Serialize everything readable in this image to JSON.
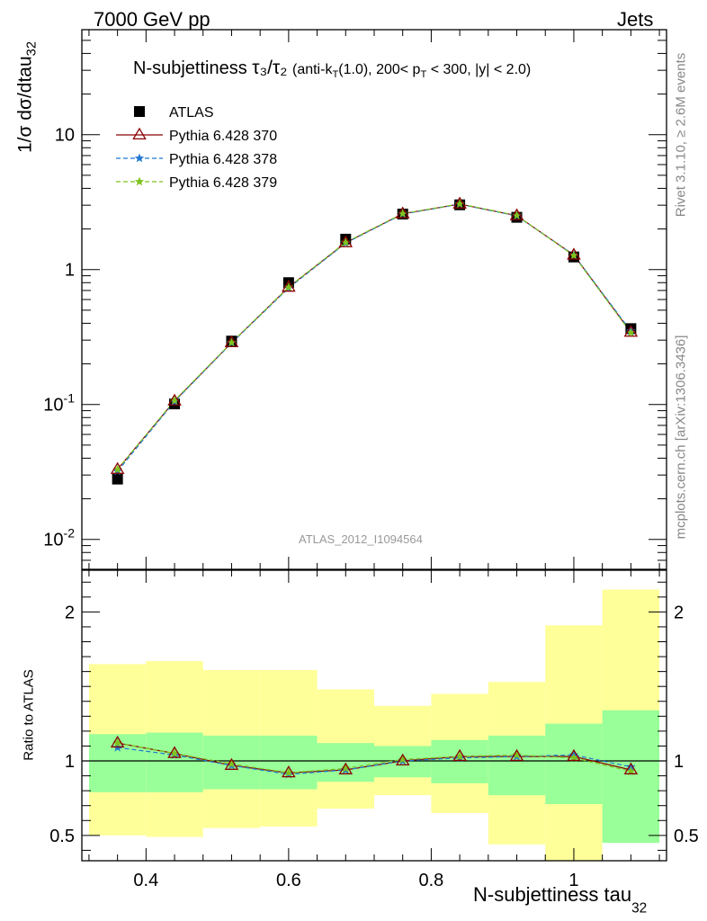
{
  "header": {
    "left": "7000 GeV pp",
    "right": "Jets"
  },
  "side_labels": {
    "rivet": "Rivet 3.1.10, ≥ 2.6M events",
    "mcplots": "mcplots.cern.ch [arXiv:1306.3436]"
  },
  "title": {
    "main": "N-subjettiness",
    "ratio_expr": "τ₃/τ₂",
    "detail": "(anti-k_T(1.0), 200< p_T < 300, |y| < 2.0)"
  },
  "watermark": "ATLAS_2012_I1094564",
  "colors": {
    "data": "#000000",
    "p370": "#8b0000",
    "p378": "#1e78d2",
    "p379": "#7fc21e",
    "band_outer": "#ffff99",
    "band_inner": "#99ff99"
  },
  "chart_data": [
    {
      "type": "scatter",
      "panel": "main",
      "ylabel": "1/σ dσ/dtau_32",
      "yscale": "log",
      "ylim": [
        0.006,
        60
      ],
      "xlim": [
        0.31,
        1.13
      ],
      "yticks": [
        {
          "value": 0.01,
          "label": "10^-2"
        },
        {
          "value": 0.1,
          "label": "10^-1"
        },
        {
          "value": 1,
          "label": "1"
        },
        {
          "value": 10,
          "label": "10"
        }
      ],
      "x": [
        0.36,
        0.44,
        0.52,
        0.6,
        0.68,
        0.76,
        0.84,
        0.92,
        1.0,
        1.08
      ],
      "series": [
        {
          "name": "ATLAS",
          "marker": "square",
          "values": [
            0.028,
            0.101,
            0.295,
            0.8,
            1.68,
            2.58,
            3.02,
            2.44,
            1.24,
            0.365
          ]
        },
        {
          "name": "Pythia 6.428 370",
          "marker": "triangle",
          "values": [
            0.033,
            0.106,
            0.287,
            0.74,
            1.58,
            2.59,
            3.06,
            2.51,
            1.28,
            0.343
          ]
        },
        {
          "name": "Pythia 6.428 378",
          "marker": "star",
          "values": [
            0.032,
            0.105,
            0.286,
            0.73,
            1.57,
            2.58,
            3.05,
            2.5,
            1.28,
            0.35
          ]
        },
        {
          "name": "Pythia 6.428 379",
          "marker": "star",
          "values": [
            0.033,
            0.107,
            0.288,
            0.74,
            1.59,
            2.6,
            3.07,
            2.52,
            1.27,
            0.34
          ]
        }
      ],
      "legend": "top-left"
    },
    {
      "type": "line",
      "panel": "ratio",
      "ylabel": "Ratio to ATLAS",
      "xlabel": "N-subjettiness tau_32",
      "ylim": [
        0.33,
        2.28
      ],
      "xlim": [
        0.31,
        1.13
      ],
      "xticks": [
        {
          "value": 0.4,
          "label": "0.4"
        },
        {
          "value": 0.6,
          "label": "0.6"
        },
        {
          "value": 0.8,
          "label": "0.8"
        },
        {
          "value": 1.0,
          "label": "1"
        }
      ],
      "yticks": [
        {
          "value": 0.5,
          "label": "0.5"
        },
        {
          "value": 1,
          "label": "1"
        },
        {
          "value": 2,
          "label": "2"
        }
      ],
      "bin_edges": [
        0.32,
        0.4,
        0.48,
        0.56,
        0.64,
        0.72,
        0.8,
        0.88,
        0.96,
        1.04,
        1.12
      ],
      "band_outer": {
        "lo": [
          0.5,
          0.49,
          0.55,
          0.56,
          0.68,
          0.77,
          0.65,
          0.44,
          0.33,
          0.45
        ],
        "hi": [
          1.65,
          1.67,
          1.61,
          1.61,
          1.48,
          1.37,
          1.45,
          1.53,
          1.91,
          2.15
        ]
      },
      "band_inner": {
        "lo": [
          0.79,
          0.79,
          0.81,
          0.81,
          0.86,
          0.89,
          0.85,
          0.77,
          0.71,
          0.45
        ],
        "hi": [
          1.18,
          1.19,
          1.17,
          1.17,
          1.12,
          1.1,
          1.14,
          1.17,
          1.25,
          1.34
        ]
      },
      "x": [
        0.36,
        0.44,
        0.52,
        0.6,
        0.68,
        0.76,
        0.84,
        0.92,
        1.0,
        1.08
      ],
      "series": [
        {
          "name": "Pythia 6.428 370",
          "values": [
            1.12,
            1.05,
            0.97,
            0.92,
            0.94,
            1.0,
            1.03,
            1.03,
            1.03,
            0.94
          ]
        },
        {
          "name": "Pythia 6.428 378",
          "values": [
            1.09,
            1.04,
            0.97,
            0.91,
            0.94,
            1.0,
            1.02,
            1.03,
            1.04,
            0.96
          ]
        },
        {
          "name": "Pythia 6.428 379",
          "values": [
            1.12,
            1.05,
            0.98,
            0.92,
            0.95,
            1.01,
            1.03,
            1.04,
            1.02,
            0.93
          ]
        }
      ]
    }
  ]
}
